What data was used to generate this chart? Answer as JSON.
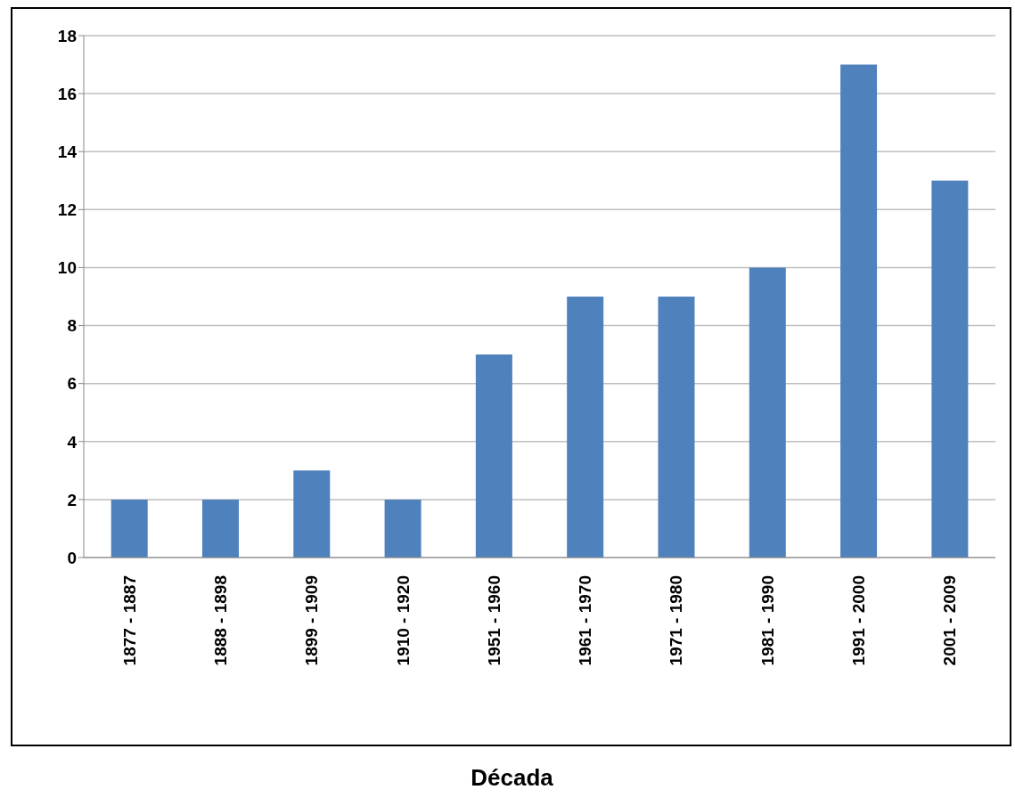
{
  "chart_data": {
    "type": "bar",
    "xlabel": "Década",
    "categories": [
      "1877 - 1887",
      "1888 - 1898",
      "1899 - 1909",
      "1910 - 1920",
      "1951 - 1960",
      "1961 - 1970",
      "1971 - 1980",
      "1981 - 1990",
      "1991 - 2000",
      "2001 - 2009"
    ],
    "values": [
      2,
      2,
      3,
      2,
      7,
      9,
      9,
      10,
      17,
      13
    ],
    "color": "#4f81bd",
    "ylim": [
      0,
      18
    ],
    "yticks": [
      0,
      2,
      4,
      6,
      8,
      10,
      12,
      14,
      16,
      18
    ],
    "grid": "y"
  }
}
